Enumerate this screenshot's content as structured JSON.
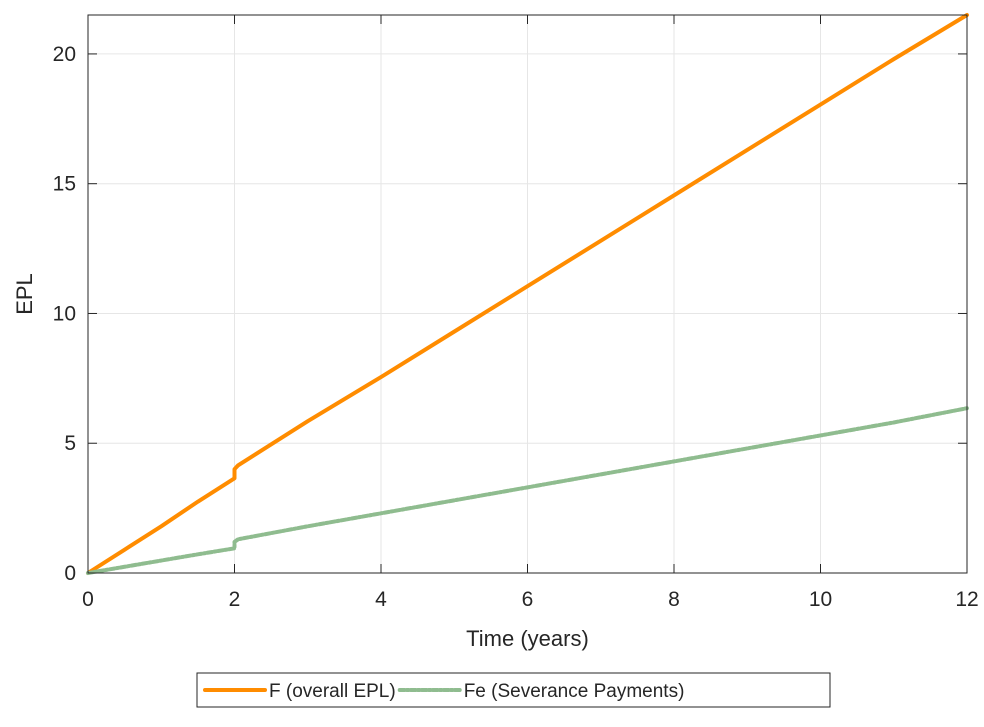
{
  "chart_data": {
    "type": "line",
    "title": "",
    "xlabel": "Time (years)",
    "ylabel": "EPL",
    "xlim": [
      0,
      12
    ],
    "ylim": [
      0,
      21.5
    ],
    "xticks": [
      0,
      2,
      4,
      6,
      8,
      10,
      12
    ],
    "yticks": [
      0,
      5,
      10,
      15,
      20
    ],
    "grid": true,
    "legend_position": "bottom-outside",
    "series": [
      {
        "name": "F (overall EPL)",
        "color": "#ff8c00",
        "style": "solid",
        "x": [
          0,
          0.5,
          1,
          1.5,
          2,
          2,
          2.05,
          3,
          4,
          5,
          6,
          7,
          8,
          9,
          10,
          11,
          12
        ],
        "y": [
          0,
          0.9,
          1.8,
          2.75,
          3.65,
          4.0,
          4.15,
          5.85,
          7.55,
          9.3,
          11.05,
          12.8,
          14.55,
          16.3,
          18.05,
          19.8,
          21.5
        ]
      },
      {
        "name": "Fe (Severance Payments)",
        "color": "#8fbc8f",
        "style": "dashed-dotted",
        "x": [
          0,
          0.5,
          1,
          1.5,
          2,
          2,
          2.05,
          3,
          4,
          5,
          6,
          7,
          8,
          9,
          10,
          11,
          12
        ],
        "y": [
          0,
          0.24,
          0.48,
          0.72,
          0.95,
          1.2,
          1.3,
          1.8,
          2.3,
          2.8,
          3.3,
          3.8,
          4.3,
          4.8,
          5.3,
          5.8,
          6.35
        ]
      }
    ]
  }
}
